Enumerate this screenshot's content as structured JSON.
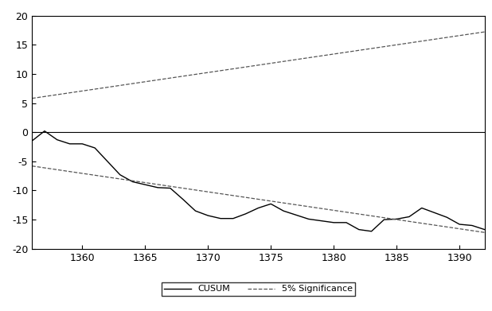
{
  "chart_data": {
    "type": "line",
    "x": [
      1356,
      1357,
      1358,
      1359,
      1360,
      1361,
      1362,
      1363,
      1364,
      1365,
      1366,
      1367,
      1368,
      1369,
      1370,
      1371,
      1372,
      1373,
      1374,
      1375,
      1376,
      1377,
      1378,
      1379,
      1380,
      1381,
      1382,
      1383,
      1384,
      1385,
      1386,
      1387,
      1388,
      1389,
      1390,
      1391,
      1392
    ],
    "series": [
      {
        "name": "CUSUM",
        "color": "#000000",
        "line_style": "solid",
        "values": [
          -1.5,
          0.2,
          -1.3,
          -2.0,
          -2.0,
          -2.7,
          -5.0,
          -7.3,
          -8.5,
          -9.0,
          -9.5,
          -9.6,
          -11.5,
          -13.5,
          -14.3,
          -14.8,
          -14.8,
          -14.0,
          -13.0,
          -12.3,
          -13.5,
          -14.2,
          -14.9,
          -15.2,
          -15.5,
          -15.5,
          -16.7,
          -17.0,
          -15.0,
          -14.9,
          -14.5,
          -13.0,
          -13.8,
          -14.6,
          -15.8,
          -16.0,
          -16.7
        ]
      },
      {
        "name": "5% Significance",
        "color": "#555555",
        "line_style": "dashed",
        "x": [
          1356,
          1392
        ],
        "values": [
          5.8,
          17.2
        ]
      },
      {
        "name": "5% Significance",
        "color": "#555555",
        "line_style": "dashed",
        "x": [
          1356,
          1392
        ],
        "values": [
          -5.8,
          -17.2
        ]
      }
    ],
    "xlim": [
      1356,
      1392
    ],
    "xticks": [
      1360,
      1365,
      1370,
      1375,
      1380,
      1385,
      1390
    ],
    "ylim": [
      -20,
      20
    ],
    "yticks": [
      -20,
      -15,
      -10,
      -5,
      0,
      5,
      10,
      15,
      20
    ],
    "grid": false,
    "legend": "lower center"
  }
}
